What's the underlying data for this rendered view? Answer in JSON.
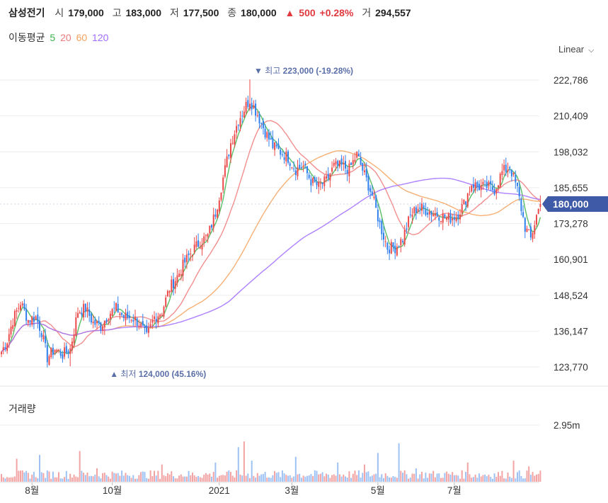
{
  "header": {
    "stock_name": "삼성전기",
    "open_label": "시",
    "open": "179,000",
    "high_label": "고",
    "high": "183,000",
    "low_label": "저",
    "low": "177,500",
    "close_label": "종",
    "close": "180,000",
    "change_arrow": "▲",
    "change": "500",
    "change_pct": "+0.28%",
    "volume_label": "거",
    "volume": "294,557"
  },
  "moving_averages": {
    "label": "이동평균",
    "periods": [
      {
        "value": "5",
        "color": "#3cb44b"
      },
      {
        "value": "20",
        "color": "#f07a7a"
      },
      {
        "value": "60",
        "color": "#f5a25d"
      },
      {
        "value": "120",
        "color": "#a06bff"
      }
    ]
  },
  "scale_dropdown": {
    "value": "Linear"
  },
  "chart_data": {
    "type": "candlestick",
    "y_ticks": [
      "222,786",
      "210,409",
      "198,032",
      "185,655",
      "173,278",
      "160,901",
      "148,524",
      "136,147",
      "123,770"
    ],
    "y_tick_values": [
      222786,
      210409,
      198032,
      185655,
      173278,
      160901,
      148524,
      136147,
      123770
    ],
    "ylim": [
      120500,
      227000
    ],
    "current_price_label": "180,000",
    "current_price": 180000,
    "x_ticks": [
      "8월",
      "10월",
      "2021",
      "3월",
      "5월",
      "7월"
    ],
    "x_tick_index": [
      16,
      58,
      114,
      152,
      197,
      237
    ],
    "high_annotation": {
      "text": "최고",
      "value_text": "223,000 (-19.28%)",
      "index": 130,
      "value": 223000
    },
    "low_annotation": {
      "text": "최저",
      "value_text": "124,000 (45.16%)",
      "index": 36,
      "value": 124000
    },
    "close_anchors": [
      [
        0,
        129000
      ],
      [
        3,
        133000
      ],
      [
        6,
        140000
      ],
      [
        10,
        146000
      ],
      [
        14,
        140000
      ],
      [
        18,
        141000
      ],
      [
        21,
        136000
      ],
      [
        24,
        127000
      ],
      [
        28,
        130000
      ],
      [
        32,
        128000
      ],
      [
        36,
        130000
      ],
      [
        40,
        143000
      ],
      [
        44,
        144000
      ],
      [
        48,
        139000
      ],
      [
        52,
        138000
      ],
      [
        56,
        142000
      ],
      [
        60,
        144000
      ],
      [
        64,
        141000
      ],
      [
        68,
        141000
      ],
      [
        72,
        139000
      ],
      [
        76,
        134000
      ],
      [
        80,
        141000
      ],
      [
        84,
        143000
      ],
      [
        88,
        151000
      ],
      [
        92,
        155000
      ],
      [
        96,
        160000
      ],
      [
        100,
        164000
      ],
      [
        104,
        167000
      ],
      [
        108,
        169000
      ],
      [
        112,
        177000
      ],
      [
        116,
        189000
      ],
      [
        120,
        201000
      ],
      [
        124,
        209000
      ],
      [
        128,
        214000
      ],
      [
        130,
        216000
      ],
      [
        134,
        211000
      ],
      [
        138,
        205000
      ],
      [
        142,
        200000
      ],
      [
        146,
        198000
      ],
      [
        150,
        196000
      ],
      [
        154,
        192000
      ],
      [
        158,
        193000
      ],
      [
        162,
        188000
      ],
      [
        166,
        186000
      ],
      [
        170,
        188000
      ],
      [
        174,
        193000
      ],
      [
        178,
        193000
      ],
      [
        182,
        192000
      ],
      [
        186,
        197000
      ],
      [
        190,
        190000
      ],
      [
        194,
        183000
      ],
      [
        198,
        173000
      ],
      [
        202,
        165000
      ],
      [
        206,
        165000
      ],
      [
        210,
        168000
      ],
      [
        214,
        176000
      ],
      [
        218,
        179000
      ],
      [
        222,
        178000
      ],
      [
        226,
        177000
      ],
      [
        230,
        176000
      ],
      [
        234,
        175000
      ],
      [
        238,
        176000
      ],
      [
        242,
        180000
      ],
      [
        246,
        187000
      ],
      [
        250,
        186000
      ],
      [
        254,
        186000
      ],
      [
        258,
        185000
      ],
      [
        262,
        191000
      ],
      [
        266,
        193000
      ],
      [
        270,
        185000
      ],
      [
        274,
        172000
      ],
      [
        277,
        168000
      ],
      [
        280,
        176000
      ],
      [
        282,
        180000
      ]
    ],
    "volume": {
      "label": "거래량",
      "y_tick": "2.95m",
      "y_tick_value": 2950000,
      "spikes": [
        [
          8,
          1200000
        ],
        [
          20,
          1400000
        ],
        [
          41,
          1600000
        ],
        [
          50,
          700000
        ],
        [
          84,
          900000
        ],
        [
          112,
          1000000
        ],
        [
          124,
          1800000
        ],
        [
          127,
          2100000
        ],
        [
          131,
          1100000
        ],
        [
          154,
          1300000
        ],
        [
          176,
          1000000
        ],
        [
          190,
          900000
        ],
        [
          197,
          1500000
        ],
        [
          208,
          2000000
        ],
        [
          217,
          700000
        ],
        [
          244,
          1000000
        ],
        [
          268,
          1100000
        ],
        [
          276,
          800000
        ]
      ]
    }
  }
}
